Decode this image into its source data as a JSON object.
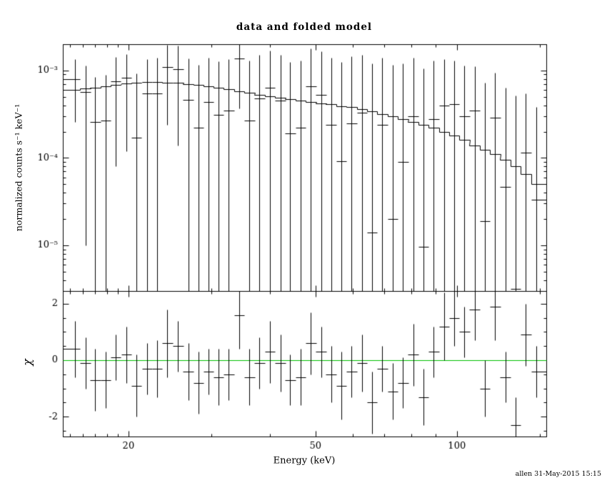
{
  "figure": {
    "title": "data and folded model",
    "xlabel": "Energy (keV)",
    "ylabel_top": "normalized counts s⁻¹ keV⁻¹",
    "ylabel_bottom": "χ",
    "timestamp": "allen 31-May-2015 15:15",
    "colors": {
      "background": "#ffffff",
      "frame": "#000000",
      "data": "#000000",
      "model": "#000000",
      "zero_line": "#00c000",
      "text": "#000000"
    }
  },
  "chart_data": [
    {
      "type": "scatter",
      "panel": "top",
      "title": "data and folded model",
      "ylabel": "normalized counts s⁻¹ keV⁻¹",
      "xscale": "log",
      "yscale": "log",
      "grid": false,
      "legend": "none",
      "xlim": [
        14.5,
        155
      ],
      "ylim": [
        3e-06,
        0.002
      ],
      "xticks": {
        "major": [
          20,
          50,
          100
        ],
        "labels": [
          "20",
          "50",
          "100"
        ],
        "minor": [
          15,
          16,
          17,
          18,
          19,
          30,
          40,
          60,
          70,
          80,
          90,
          150
        ]
      },
      "yticks": {
        "major": [
          0.001,
          0.0001,
          1e-05
        ],
        "labels": [
          "10⁻³",
          "10⁻⁴",
          "10⁻⁵"
        ]
      },
      "x": [
        15.4,
        16.2,
        17.0,
        17.9,
        18.8,
        19.8,
        20.8,
        21.9,
        23.0,
        24.2,
        25.5,
        26.8,
        28.2,
        29.6,
        31.1,
        32.7,
        34.4,
        36.2,
        38.0,
        40.0,
        42.1,
        44.2,
        46.5,
        48.9,
        51.4,
        54.0,
        56.8,
        59.7,
        62.8,
        66.0,
        69.4,
        73.0,
        76.8,
        80.7,
        84.9,
        89.3,
        93.9,
        98.7,
        103.8,
        109.1,
        114.7,
        120.6,
        126.8,
        133.4,
        140.2,
        147.5
      ],
      "series": [
        {
          "name": "data",
          "marker": "cross-with-errors",
          "values": [
            0.0008,
            0.00057,
            0.00026,
            0.00027,
            0.00075,
            0.00083,
            0.00017,
            0.00055,
            0.00055,
            0.0011,
            0.00103,
            0.00046,
            0.00022,
            0.00044,
            0.00031,
            0.00035,
            0.00137,
            0.00027,
            0.00048,
            0.00064,
            0.00045,
            0.00019,
            0.00022,
            0.00066,
            0.00053,
            0.00024,
            9.2e-05,
            0.00025,
            0.00033,
            1.4e-05,
            0.00024,
            2e-05,
            9e-05,
            0.0003,
            9.6e-06,
            0.00028,
            0.0004,
            0.00041,
            0.0003,
            0.00035,
            1.9e-05,
            0.00029,
            4.7e-05,
            3.2e-06,
            0.000115,
            3.3e-05
          ],
          "yerr": [
            0.00054,
            0.00056,
            0.00059,
            0.00062,
            0.00067,
            0.00071,
            0.00076,
            0.0008,
            0.00084,
            0.00086,
            0.00089,
            0.00092,
            0.00094,
            0.00096,
            0.00097,
            0.00099,
            0.001,
            0.00102,
            0.00102,
            0.00104,
            0.00105,
            0.00107,
            0.00108,
            0.00112,
            0.00112,
            0.00116,
            0.00116,
            0.00119,
            0.00119,
            0.00118,
            0.00116,
            0.00115,
            0.00112,
            0.00109,
            0.00105,
            0.00101,
            0.00096,
            0.0009,
            0.00084,
            0.00077,
            0.00071,
            0.00065,
            0.00059,
            0.00051,
            0.00043,
            0.00035
          ]
        },
        {
          "name": "folded model",
          "marker": "step-histogram",
          "values": [
            0.0006,
            0.00062,
            0.00064,
            0.00066,
            0.00069,
            0.00071,
            0.00073,
            0.00074,
            0.00074,
            0.00073,
            0.00072,
            0.0007,
            0.00068,
            0.00066,
            0.00063,
            0.00061,
            0.00058,
            0.00056,
            0.00053,
            0.00051,
            0.00049,
            0.00047,
            0.00045,
            0.00044,
            0.00042,
            0.00041,
            0.00039,
            0.00038,
            0.00036,
            0.00034,
            0.00032,
            0.0003,
            0.00028,
            0.00026,
            0.00024,
            0.00022,
            0.0002,
            0.00018,
            0.00016,
            0.00014,
            0.000125,
            0.00011,
            9.5e-05,
            8e-05,
            6.5e-05,
            5e-05
          ]
        }
      ]
    },
    {
      "type": "scatter",
      "panel": "bottom",
      "xlabel": "Energy (keV)",
      "ylabel": "χ",
      "xscale": "log",
      "yscale": "linear",
      "grid": false,
      "legend": "none",
      "xlim": [
        14.5,
        155
      ],
      "ylim": [
        -2.7,
        2.45
      ],
      "zero_line": 0,
      "zero_line_color": "#00c000",
      "yticks": {
        "major": [
          2,
          0,
          -2
        ],
        "labels": [
          "2",
          "0",
          "-2"
        ],
        "minor": [
          -2.5,
          -1.5,
          -1,
          -0.5,
          0.5,
          1,
          1.5
        ]
      },
      "x": [
        15.4,
        16.2,
        17.0,
        17.9,
        18.8,
        19.8,
        20.8,
        21.9,
        23.0,
        24.2,
        25.5,
        26.8,
        28.2,
        29.6,
        31.1,
        32.7,
        34.4,
        36.2,
        38.0,
        40.0,
        42.1,
        44.2,
        46.5,
        48.9,
        51.4,
        54.0,
        56.8,
        59.7,
        62.8,
        66.0,
        69.4,
        73.0,
        76.8,
        80.7,
        84.9,
        89.3,
        93.9,
        98.7,
        103.8,
        109.1,
        114.7,
        120.6,
        126.8,
        133.4,
        140.2,
        147.5
      ],
      "series": [
        {
          "name": "chi",
          "marker": "cross-with-errors",
          "values": [
            0.4,
            -0.1,
            -0.7,
            -0.7,
            0.1,
            0.2,
            -0.9,
            -0.3,
            -0.3,
            0.6,
            0.5,
            -0.4,
            -0.8,
            -0.4,
            -0.6,
            -0.5,
            1.6,
            -0.6,
            -0.1,
            0.3,
            -0.1,
            -0.7,
            -0.6,
            0.6,
            0.3,
            -0.5,
            -0.9,
            -0.4,
            -0.1,
            -1.5,
            -0.3,
            -1.1,
            -0.8,
            0.2,
            -1.3,
            0.3,
            1.2,
            1.5,
            1.0,
            1.8,
            -1.0,
            1.9,
            -0.6,
            -2.3,
            0.9,
            -0.4
          ],
          "yerr": [
            1.0,
            0.9,
            1.1,
            1.0,
            0.8,
            1.0,
            1.1,
            0.9,
            1.0,
            1.2,
            0.9,
            1.0,
            1.1,
            0.8,
            1.0,
            0.9,
            1.2,
            1.0,
            0.9,
            1.1,
            1.0,
            0.9,
            1.0,
            1.1,
            0.9,
            1.0,
            1.2,
            0.9,
            1.0,
            1.1,
            0.8,
            1.0,
            0.9,
            1.1,
            1.0,
            0.9,
            1.2,
            1.0,
            0.9,
            1.1,
            1.0,
            1.2,
            0.9,
            1.0,
            1.1,
            0.9
          ]
        }
      ]
    }
  ]
}
